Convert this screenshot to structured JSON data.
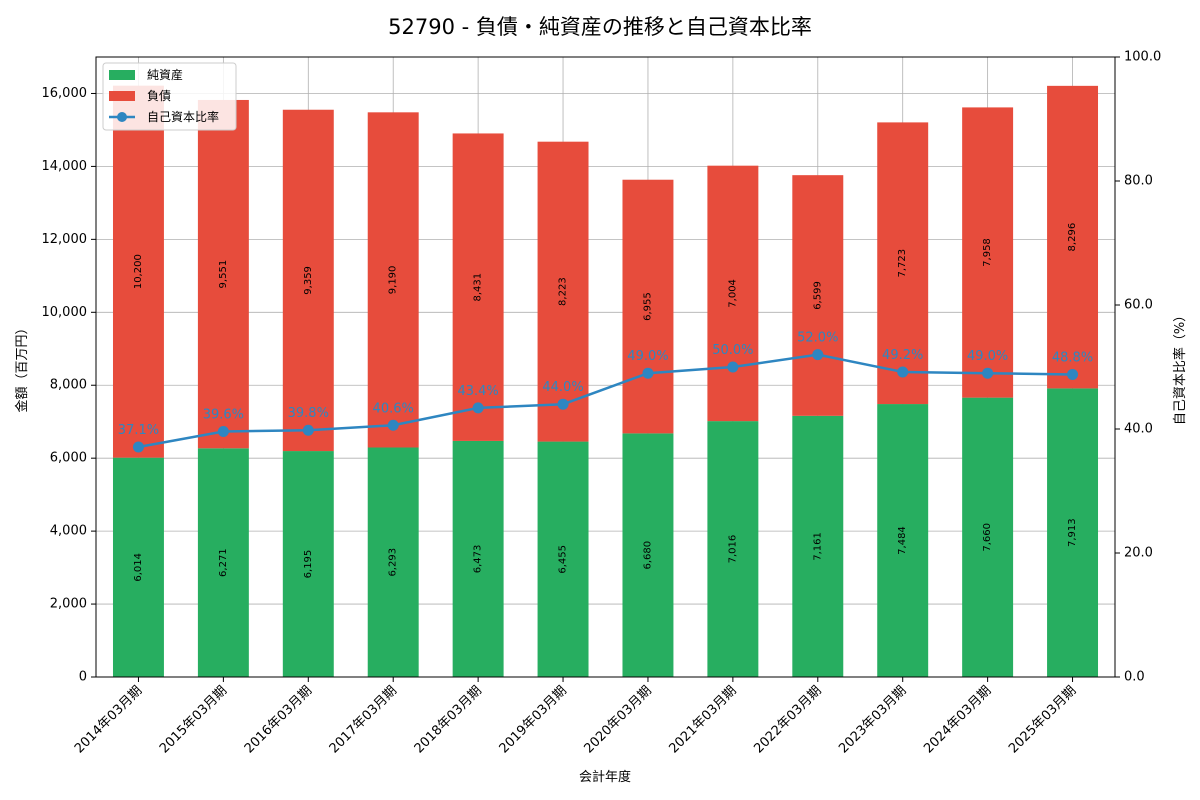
{
  "colors": {
    "net_assets": "#27ae60",
    "liabilities": "#e74c3c",
    "equity_ratio": "#2e86c1",
    "grid": "#b0b0b0"
  },
  "chart_data": {
    "type": "bar",
    "title": "52790 - 負債・純資産の推移と自己資本比率",
    "xlabel": "会計年度",
    "ylabel": "金額（百万円）",
    "y2label": "自己資本比率（%）",
    "ylim": [
      0,
      17000
    ],
    "y2lim": [
      0,
      100
    ],
    "yticks": [
      0,
      2000,
      4000,
      6000,
      8000,
      10000,
      12000,
      14000,
      16000
    ],
    "y2ticks": [
      0,
      20,
      40,
      60,
      80,
      100
    ],
    "grid": true,
    "legend_position": "top-left",
    "stacked": true,
    "categories": [
      "2014年03月期",
      "2015年03月期",
      "2016年03月期",
      "2017年03月期",
      "2018年03月期",
      "2019年03月期",
      "2020年03月期",
      "2021年03月期",
      "2022年03月期",
      "2023年03月期",
      "2024年03月期",
      "2025年03月期"
    ],
    "series": [
      {
        "name": "純資産",
        "type": "bar",
        "values": [
          6014,
          6271,
          6195,
          6293,
          6473,
          6455,
          6680,
          7016,
          7161,
          7484,
          7660,
          7913
        ]
      },
      {
        "name": "負債",
        "type": "bar",
        "values": [
          10200,
          9551,
          9359,
          9190,
          8431,
          8223,
          6955,
          7004,
          6599,
          7723,
          7958,
          8296
        ]
      },
      {
        "name": "自己資本比率",
        "type": "line",
        "axis": "right",
        "values": [
          37.1,
          39.6,
          39.8,
          40.6,
          43.4,
          44.0,
          49.0,
          50.0,
          52.0,
          49.2,
          49.0,
          48.8
        ]
      }
    ]
  }
}
